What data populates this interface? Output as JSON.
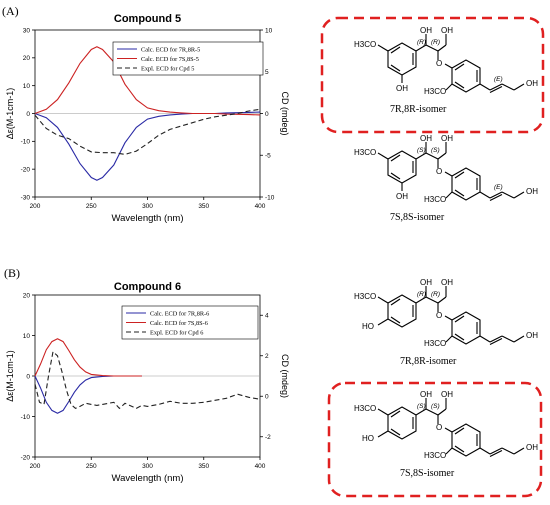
{
  "panels": [
    {
      "label": "(A)",
      "structures": [
        {
          "caption": "7R,8R-isomer",
          "labels": {
            "oh_top": "OH",
            "oh_side": "OH",
            "oh_tail": "OH",
            "oh_ring": "OH",
            "meo_top": "H3CO",
            "meo_low": "H3CO",
            "cfg1": "(R)",
            "cfg2": "(R)",
            "dbond": "(E)",
            "o_link": "O"
          }
        },
        {
          "caption": "7S,8S-isomer",
          "labels": {
            "oh_top": "OH",
            "oh_side": "OH",
            "oh_tail": "OH",
            "oh_ring": "OH",
            "meo_top": "H3CO",
            "meo_low": "H3CO",
            "cfg1": "(S)",
            "cfg2": "(S)",
            "dbond": "(E)",
            "o_link": "O"
          }
        }
      ]
    },
    {
      "label": "(B)",
      "structures": [
        {
          "caption": "7R,8R-isomer",
          "labels": {
            "oh_top": "OH",
            "oh_side": "OH",
            "oh_tail": "OH",
            "oh_ring": "HO",
            "meo_top": "H3CO",
            "meo_low": "H3CO",
            "cfg1": "(R)",
            "cfg2": "(R)",
            "o_link": "O"
          }
        },
        {
          "caption": "7S,8S-isomer",
          "labels": {
            "oh_top": "OH",
            "oh_side": "OH",
            "oh_tail": "OH",
            "oh_ring": "HO",
            "meo_top": "H3CO",
            "meo_low": "H3CO",
            "cfg1": "(S)",
            "cfg2": "(S)",
            "o_link": "O"
          }
        }
      ]
    }
  ],
  "chart_data": [
    {
      "type": "line",
      "title": "Compound 5",
      "xlabel": "Wavelength (nm)",
      "ylabel": "Δε(M-1cm-1)",
      "y2label": "CD (mdeg)",
      "xlim": [
        200,
        400
      ],
      "ylim": [
        -30,
        30
      ],
      "y2lim": [
        -10,
        10
      ],
      "xticks": [
        200,
        250,
        300,
        350,
        400
      ],
      "yticks": [
        -30,
        -20,
        -10,
        0,
        10,
        20,
        30
      ],
      "y2ticks": [
        -10,
        -5,
        0,
        5,
        10
      ],
      "legend_position": "top-right",
      "series": [
        {
          "name": "Calc. ECD for 7R,8R-5",
          "color": "#2a2aa5",
          "dash": "solid",
          "axis": "left",
          "x": [
            200,
            210,
            220,
            230,
            240,
            250,
            255,
            260,
            270,
            280,
            290,
            300,
            310,
            320,
            330,
            340,
            350,
            360,
            370,
            380,
            390,
            400
          ],
          "y": [
            0,
            -1.5,
            -5,
            -11,
            -18,
            -23,
            -24,
            -23,
            -18.5,
            -10.5,
            -5,
            -2,
            -1,
            -0.5,
            -0.2,
            0,
            0,
            0,
            0.2,
            0.3,
            0.4,
            0.5
          ]
        },
        {
          "name": "Calc. ECD for 7S,8S-5",
          "color": "#cc2222",
          "dash": "solid",
          "axis": "left",
          "x": [
            200,
            210,
            220,
            230,
            240,
            250,
            255,
            260,
            270,
            280,
            290,
            300,
            310,
            320,
            330,
            340,
            350,
            360,
            370,
            380,
            390,
            400
          ],
          "y": [
            0,
            1.5,
            5,
            11,
            18,
            23,
            24,
            23,
            18.5,
            10.5,
            5,
            2,
            1,
            0.5,
            0.2,
            0,
            0,
            0,
            -0.2,
            -0.3,
            -0.4,
            -0.5
          ]
        },
        {
          "name": "Expl. ECD for Cpd 5",
          "color": "#222222",
          "dash": "dashed",
          "axis": "right",
          "x": [
            200,
            210,
            220,
            230,
            240,
            250,
            260,
            270,
            280,
            290,
            300,
            310,
            320,
            330,
            340,
            350,
            360,
            370,
            380,
            390,
            400
          ],
          "y": [
            -0.2,
            -1.8,
            -2.6,
            -3.0,
            -3.9,
            -4.6,
            -4.7,
            -4.7,
            -4.9,
            -4.5,
            -3.6,
            -2.6,
            -1.9,
            -1.5,
            -1.1,
            -0.7,
            -0.4,
            -0.2,
            0,
            0.3,
            0.5
          ]
        }
      ]
    },
    {
      "type": "line",
      "title": "Compound 6",
      "xlabel": "Wavelength (nm)",
      "ylabel": "Δε(M-1cm-1)",
      "y2label": "CD (mdeg)",
      "xlim": [
        200,
        400
      ],
      "ylim": [
        -20,
        20
      ],
      "y2lim": [
        -3,
        5
      ],
      "xticks": [
        200,
        250,
        300,
        350,
        400
      ],
      "yticks": [
        -20,
        -10,
        0,
        10,
        20
      ],
      "y2ticks": [
        -2,
        0,
        2,
        4
      ],
      "legend_position": "top-right",
      "series": [
        {
          "name": "Calc. ECD for 7R,8R-6",
          "color": "#2a2aa5",
          "dash": "solid",
          "axis": "left",
          "x": [
            200,
            205,
            210,
            215,
            220,
            225,
            230,
            235,
            240,
            245,
            250,
            260,
            270,
            280,
            290,
            295
          ],
          "y": [
            0,
            -3,
            -6.5,
            -8.5,
            -9.2,
            -8.5,
            -6.3,
            -4,
            -2.2,
            -1,
            -0.4,
            -0.1,
            0,
            0,
            0,
            0
          ]
        },
        {
          "name": "Calc. ECD for 7S,8S-6",
          "color": "#cc2222",
          "dash": "solid",
          "axis": "left",
          "x": [
            200,
            205,
            210,
            215,
            220,
            225,
            230,
            235,
            240,
            245,
            250,
            260,
            270,
            280,
            290,
            295
          ],
          "y": [
            0,
            3,
            6.5,
            8.5,
            9.2,
            8.5,
            6.3,
            4,
            2.2,
            1,
            0.4,
            0.1,
            0,
            0,
            0,
            0
          ]
        },
        {
          "name": "Expl. ECD for Cpd 6",
          "color": "#222222",
          "dash": "dashed",
          "axis": "right",
          "x": [
            200,
            204,
            208,
            212,
            216,
            220,
            224,
            228,
            232,
            236,
            240,
            245,
            250,
            255,
            260,
            270,
            275,
            280,
            290,
            295,
            300,
            310,
            320,
            330,
            340,
            350,
            360,
            370,
            380,
            390,
            400
          ],
          "y": [
            0.6,
            -0.3,
            -0.4,
            1.0,
            2.2,
            2.0,
            1.2,
            0.3,
            -0.4,
            -0.6,
            -0.5,
            -0.35,
            -0.4,
            -0.45,
            -0.4,
            -0.3,
            -0.6,
            -0.35,
            -0.6,
            -0.45,
            -0.5,
            -0.4,
            -0.25,
            -0.35,
            -0.35,
            -0.3,
            -0.2,
            -0.1,
            0.1,
            -0.05,
            -0.15
          ]
        }
      ]
    }
  ]
}
